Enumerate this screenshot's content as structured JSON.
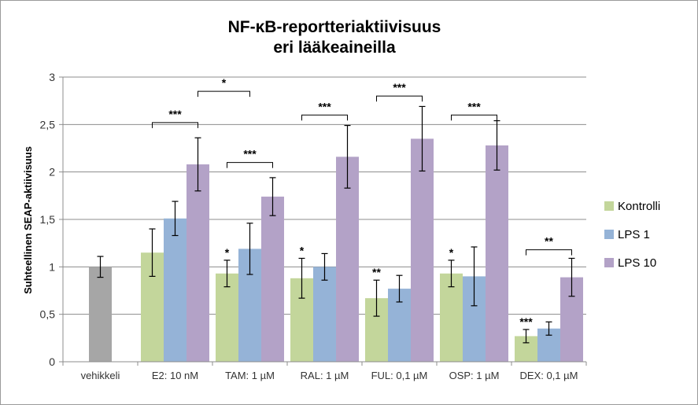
{
  "chart_data": {
    "type": "bar",
    "title_line1": "NF-κB-reportteriaktiivisuus",
    "title_line2": "eri lääkeaineilla",
    "ylabel": "Suhteellinen SEAP-aktiivisuus",
    "ylim": [
      0,
      3
    ],
    "yticks": [
      "0",
      "0,5",
      "1",
      "1,5",
      "2",
      "2,5",
      "3"
    ],
    "grid": true,
    "legend_position": "right",
    "colors": {
      "Kontrolli": "#c3d69b",
      "LPS 1": "#95b3d7",
      "LPS 10": "#b3a2c7",
      "vehikkeli": "#a6a6a6"
    },
    "categories": [
      "vehikkeli",
      "E2: 10 nM",
      "TAM: 1 µM",
      "RAL: 1 µM",
      "FUL: 0,1 µM",
      "OSP: 1 µM",
      "DEX: 0,1 µM"
    ],
    "vehicle": {
      "value": 1.0,
      "err": 0.11
    },
    "series": [
      {
        "name": "Kontrolli",
        "values": [
          null,
          1.15,
          0.93,
          0.88,
          0.67,
          0.93,
          0.27
        ],
        "errors": [
          null,
          0.25,
          0.14,
          0.21,
          0.19,
          0.14,
          0.07
        ]
      },
      {
        "name": "LPS 1",
        "values": [
          null,
          1.51,
          1.19,
          1.0,
          0.77,
          0.9,
          0.35
        ],
        "errors": [
          null,
          0.18,
          0.27,
          0.14,
          0.14,
          0.31,
          0.07
        ]
      },
      {
        "name": "LPS 10",
        "values": [
          null,
          2.08,
          1.74,
          2.16,
          2.35,
          2.28,
          0.89
        ],
        "errors": [
          null,
          0.28,
          0.2,
          0.33,
          0.34,
          0.26,
          0.2
        ]
      }
    ],
    "bar_annotations": [
      {
        "category": 2,
        "series": 0,
        "text": "*"
      },
      {
        "category": 3,
        "series": 0,
        "text": "*"
      },
      {
        "category": 4,
        "series": 0,
        "text": "**"
      },
      {
        "category": 5,
        "series": 0,
        "text": "*"
      },
      {
        "category": 6,
        "series": 0,
        "text": "***"
      }
    ],
    "brackets": [
      {
        "from": [
          1,
          0
        ],
        "to": [
          1,
          2
        ],
        "y": 2.52,
        "text": "***"
      },
      {
        "from": [
          1,
          2
        ],
        "to": [
          2,
          1
        ],
        "y": 2.85,
        "text": "*"
      },
      {
        "from": [
          2,
          0
        ],
        "to": [
          2,
          2
        ],
        "y": 2.1,
        "text": "***"
      },
      {
        "from": [
          3,
          0
        ],
        "to": [
          3,
          2
        ],
        "y": 2.6,
        "text": "***"
      },
      {
        "from": [
          4,
          0
        ],
        "to": [
          4,
          2
        ],
        "y": 2.8,
        "text": "***"
      },
      {
        "from": [
          5,
          0
        ],
        "to": [
          5,
          2
        ],
        "y": 2.6,
        "text": "***"
      },
      {
        "from": [
          6,
          0
        ],
        "to": [
          6,
          2
        ],
        "y": 1.18,
        "text": "**"
      }
    ]
  }
}
